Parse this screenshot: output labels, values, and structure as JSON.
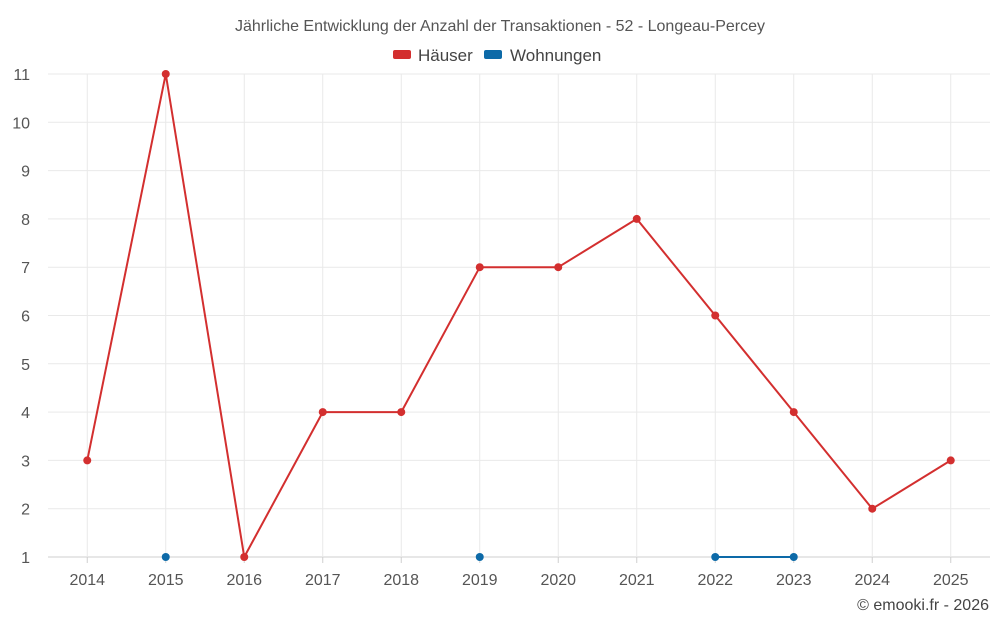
{
  "chart_data": {
    "type": "line",
    "title": "Jährliche Entwicklung der Anzahl der Transaktionen - 52 - Longeau-Percey",
    "categories": [
      "2014",
      "2015",
      "2016",
      "2017",
      "2018",
      "2019",
      "2020",
      "2021",
      "2022",
      "2023",
      "2024",
      "2025"
    ],
    "ylim": [
      1,
      11
    ],
    "yticks": [
      1,
      2,
      3,
      4,
      5,
      6,
      7,
      8,
      9,
      10,
      11
    ],
    "grid": true,
    "legend_position": "top-center",
    "series": [
      {
        "name": "Häuser",
        "color": "#d32f2f",
        "values": [
          3,
          11,
          1,
          4,
          4,
          7,
          7,
          8,
          6,
          4,
          2,
          3
        ]
      },
      {
        "name": "Wohnungen",
        "color": "#0d6aa8",
        "values": [
          null,
          1,
          null,
          null,
          null,
          1,
          null,
          null,
          1,
          1,
          null,
          null
        ]
      }
    ],
    "credit": "© emooki.fr - 2026"
  }
}
